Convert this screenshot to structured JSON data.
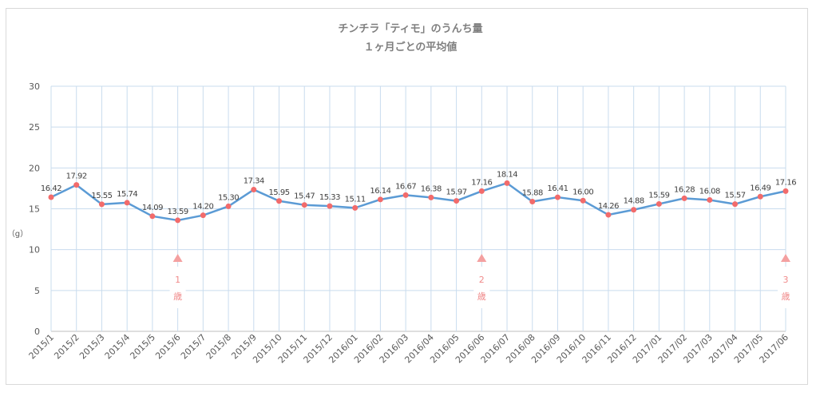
{
  "chart_data": {
    "type": "line",
    "title": "チンチラ「ティモ」のうんち量",
    "subtitle": "１ヶ月ごとの平均値",
    "ylabel": "（g）",
    "xlabel": "",
    "ylim": [
      0,
      30
    ],
    "yticks": [
      0,
      5,
      10,
      15,
      20,
      25,
      30
    ],
    "grid": true,
    "legend": "none",
    "categories": [
      "2015/1",
      "2015/2",
      "2015/3",
      "2015/4",
      "2015/5",
      "2015/6",
      "2015/7",
      "2015/8",
      "2015/9",
      "2015/10",
      "2015/11",
      "2015/12",
      "2016/01",
      "2016/02",
      "2016/03",
      "2016/04",
      "2016/05",
      "2016/06",
      "2016/07",
      "2016/08",
      "2016/09",
      "2016/10",
      "2016/11",
      "2016/12",
      "2017/01",
      "2017/02",
      "2017/03",
      "2017/04",
      "2017/05",
      "2017/06"
    ],
    "values": [
      16.42,
      17.92,
      15.55,
      15.74,
      14.09,
      13.59,
      14.2,
      15.3,
      17.34,
      15.95,
      15.47,
      15.33,
      15.11,
      16.14,
      16.67,
      16.38,
      15.97,
      17.16,
      18.14,
      15.88,
      16.41,
      16.0,
      14.26,
      14.88,
      15.59,
      16.28,
      16.08,
      15.57,
      16.49,
      17.16
    ],
    "data_labels": [
      "16.42",
      "17.92",
      "15.55",
      "15.74",
      "14.09",
      "13.59",
      "14.20",
      "15.30",
      "17.34",
      "15.95",
      "15.47",
      "15.33",
      "15.11",
      "16.14",
      "16.67",
      "16.38",
      "15.97",
      "17.16",
      "18.14",
      "15.88",
      "16.41",
      "16.00",
      "14.26",
      "14.88",
      "15.59",
      "16.28",
      "16.08",
      "15.57",
      "16.49",
      "17.16"
    ],
    "annotations": [
      {
        "category": "2015/6",
        "num": "1",
        "unit": "歳"
      },
      {
        "category": "2016/06",
        "num": "2",
        "unit": "歳"
      },
      {
        "category": "2017/06",
        "num": "3",
        "unit": "歳"
      }
    ],
    "colors": {
      "line": "#5b9bd5",
      "marker": "#f26b6b",
      "annotation": "#f4a0a0",
      "grid": "#c9dcee",
      "axis": "#bfbfbf"
    }
  }
}
